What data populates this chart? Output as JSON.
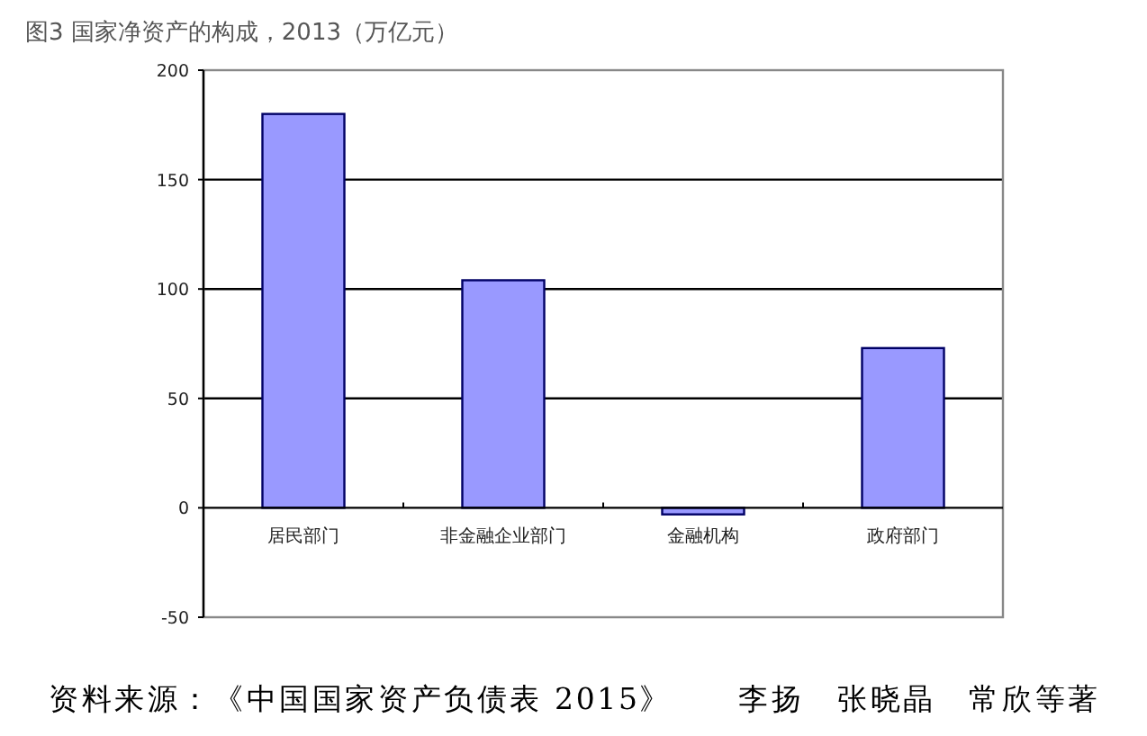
{
  "chart_data": {
    "type": "bar",
    "title": "图3 国家净资产的构成，2013（万亿元）",
    "categories": [
      "居民部门",
      "非金融企业部门",
      "金融机构",
      "政府部门"
    ],
    "values": [
      180,
      104,
      -3,
      73
    ],
    "color": "#9999ff",
    "ylim": [
      -50,
      200
    ],
    "yticks": [
      -50,
      0,
      50,
      100,
      150,
      200
    ],
    "grid": "y",
    "annotations": [
      "资料来源：《中国国家资产负债表 2015》　　李扬　张晓晶　常欣等著"
    ]
  }
}
